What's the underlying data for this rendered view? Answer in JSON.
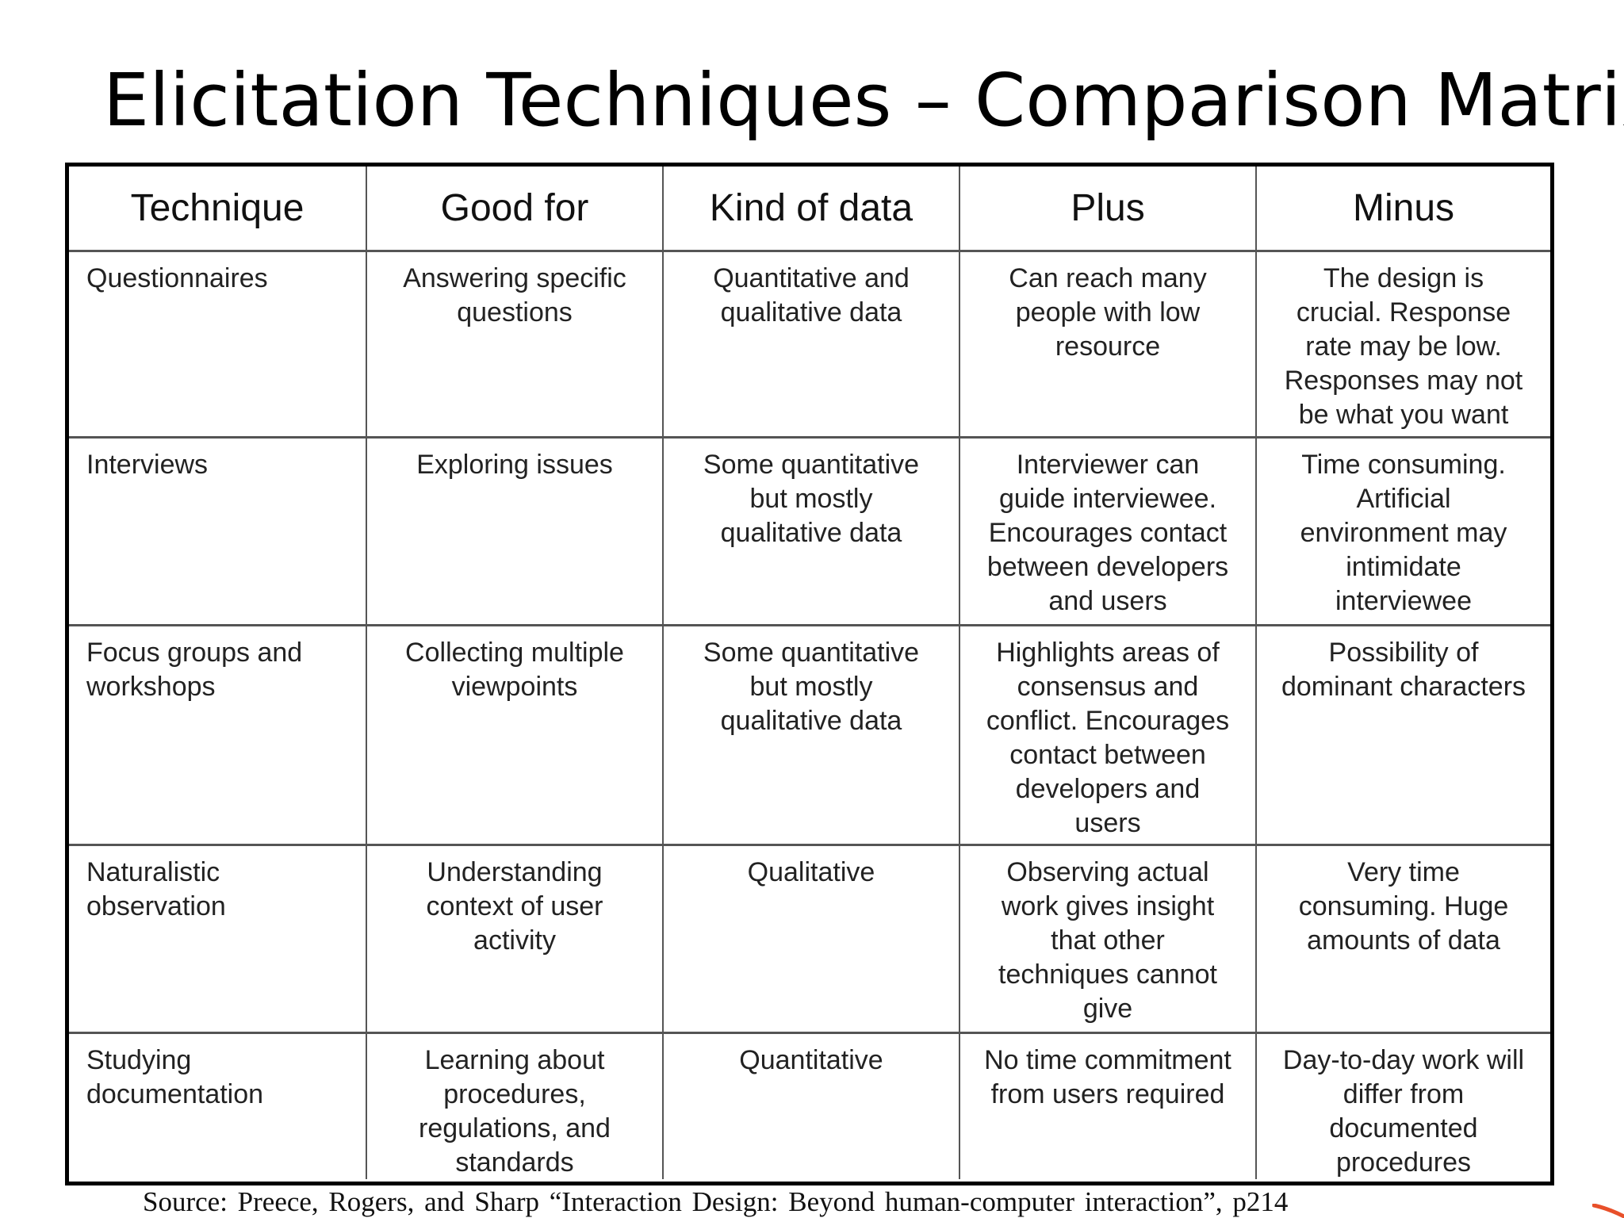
{
  "slide": {
    "title": "Elicitation Techniques – Comparison Matrix",
    "source": "Source:  Preece, Rogers, and Sharp “Interaction  Design:  Beyond human-computer  interaction”,  p214"
  },
  "table": {
    "headers": [
      "Technique",
      "Good for",
      "Kind of data",
      "Plus",
      "Minus"
    ],
    "rows": [
      {
        "technique": "Questionnaires",
        "good_for": "Answering specific\nquestions",
        "kind_of_data": "Quantitative  and\nqualitative  data",
        "plus": "Can reach many\npeople with low\nresource",
        "minus": "The design is\ncrucial. Response\nrate may be low.\nResponses may not\nbe what you want"
      },
      {
        "technique": "Interviews",
        "good_for": "Exploring issues",
        "kind_of_data": "Some quantitative\nbut mostly\nqualitative  data",
        "plus": "Interviewer  can\nguide interviewee.\nEncourages contact\nbetween developers\nand users",
        "minus": "Time consuming.\nArtificial\nenvironment may\nintimidate\ninterviewee"
      },
      {
        "technique": "Focus groups and\nworkshops",
        "good_for": "Collecting multiple\nviewpoints",
        "kind_of_data": "Some quantitative\nbut mostly\nqualitative  data",
        "plus": "Highlights  areas of\nconsensus and\nconflict. Encourages\ncontact between\ndevelopers  and\nusers",
        "minus": "Possibility of\ndominant characters"
      },
      {
        "technique": "Naturalistic\nobservation",
        "good_for": "Understanding\ncontext of user\nactivity",
        "kind_of_data": "Qualitative",
        "plus": "Observing actual\nwork gives insight\nthat other\ntechniques cannot\ngive",
        "minus": "Very time\nconsuming. Huge\namounts of data"
      },
      {
        "technique": "Studying\ndocumentation",
        "good_for": "Learning  about\nprocedures,\nregulations,  and\nstandards",
        "kind_of_data": "Quantitative",
        "plus": "No time commitment\nfrom users required",
        "minus": "Day-to-day work will\ndiffer from\ndocumented\nprocedures"
      }
    ]
  },
  "colors": {
    "text": "#000000",
    "cell_text": "#222222",
    "grid_line": "#555555",
    "corner_mark": "#e8502a"
  }
}
